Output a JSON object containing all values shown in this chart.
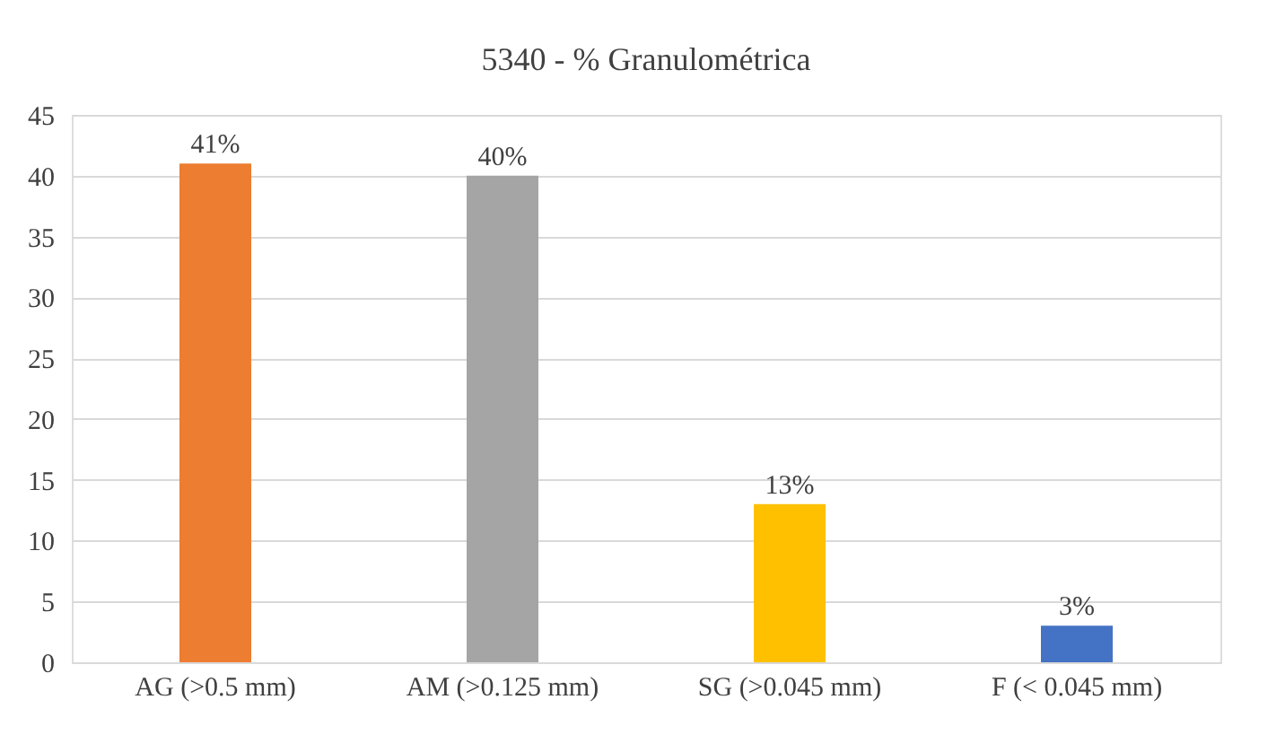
{
  "chart_data": {
    "type": "bar",
    "title": "5340 - % Granulométrica",
    "categories": [
      "AG (>0.5 mm)",
      "AM (>0.125 mm)",
      "SG (>0.045 mm)",
      "F (< 0.045 mm)"
    ],
    "values": [
      41,
      40,
      13,
      3
    ],
    "colors": [
      "#ed7d31",
      "#a5a5a5",
      "#ffc000",
      "#4472c4"
    ],
    "value_labels": [
      "41%",
      "40%",
      "13%",
      "3%"
    ],
    "ylim": [
      0,
      45
    ],
    "yticks": [
      0,
      5,
      10,
      15,
      20,
      25,
      30,
      35,
      40,
      45
    ],
    "grid": "y"
  }
}
